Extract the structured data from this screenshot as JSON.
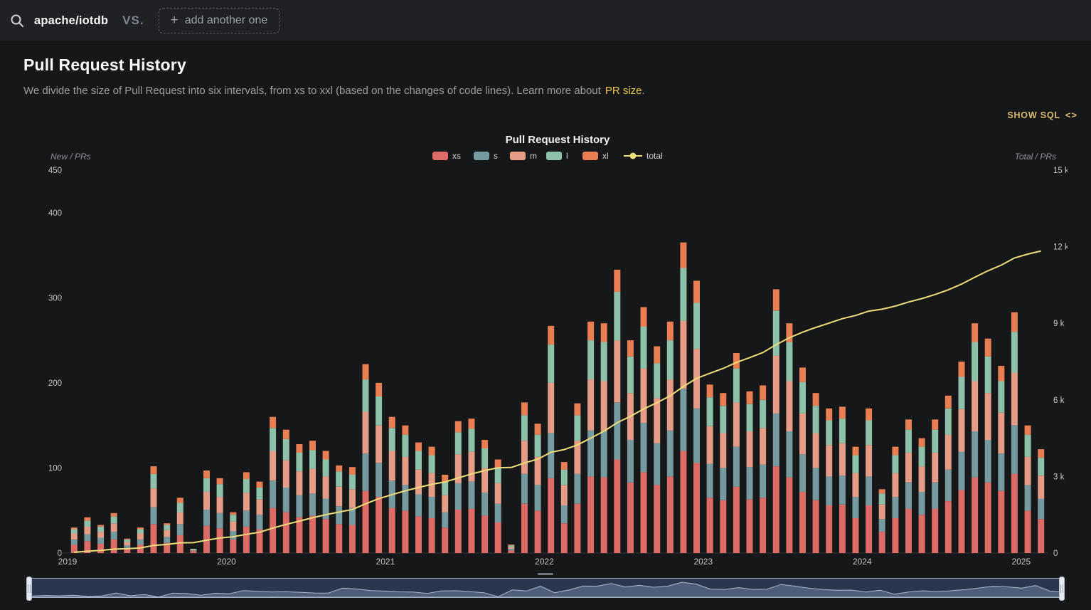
{
  "topbar": {
    "repo": "apache/iotdb",
    "vs_label": "VS.",
    "add_plus": "+",
    "add_button": "add another one"
  },
  "page": {
    "title": "Pull Request History",
    "subtitle_prefix": "We divide the size of Pull Request into six intervals, from xs to xxl (based on the changes of code lines). Learn more about",
    "subtitle_link": "PR size",
    "subtitle_suffix": ".",
    "show_sql": "SHOW SQL",
    "show_sql_icon": "<>"
  },
  "colors": {
    "accent_yellow": "#edc74f",
    "sql_yellow": "#d9bd72",
    "topbar_bg": "#1f2124",
    "page_bg": "#161719",
    "slider_bg": "#28374e",
    "slider_border": "#9aa7bb"
  },
  "chart_data": {
    "type": "bar",
    "stacked": true,
    "title": "Pull Request History",
    "legend_position": "top",
    "grid": false,
    "left_axis": {
      "name": "New / PRs",
      "max": 450,
      "ticks": [
        0,
        100,
        200,
        300,
        400,
        450
      ]
    },
    "right_axis": {
      "name": "Total / PRs",
      "max": 15000,
      "ticks": [
        0,
        3000,
        6000,
        9000,
        12000,
        15000
      ],
      "tick_labels": [
        "0",
        "3 k",
        "6 k",
        "9 k",
        "12 k",
        "15 k"
      ]
    },
    "x_year_labels": [
      "2019",
      "2020",
      "2021",
      "2022",
      "2023",
      "2024",
      "2025"
    ],
    "months": [
      "2019-01",
      "2019-02",
      "2019-03",
      "2019-04",
      "2019-05",
      "2019-06",
      "2019-07",
      "2019-08",
      "2019-09",
      "2019-10",
      "2019-11",
      "2019-12",
      "2020-01",
      "2020-02",
      "2020-03",
      "2020-04",
      "2020-05",
      "2020-06",
      "2020-07",
      "2020-08",
      "2020-09",
      "2020-10",
      "2020-11",
      "2020-12",
      "2021-01",
      "2021-02",
      "2021-03",
      "2021-04",
      "2021-05",
      "2021-06",
      "2021-07",
      "2021-08",
      "2021-09",
      "2021-10",
      "2021-11",
      "2021-12",
      "2022-01",
      "2022-02",
      "2022-03",
      "2022-04",
      "2022-05",
      "2022-06",
      "2022-07",
      "2022-08",
      "2022-09",
      "2022-10",
      "2022-11",
      "2022-12",
      "2023-01",
      "2023-02",
      "2023-03",
      "2023-04",
      "2023-05",
      "2023-06",
      "2023-07",
      "2023-08",
      "2023-09",
      "2023-10",
      "2023-11",
      "2023-12",
      "2024-01",
      "2024-02",
      "2024-03",
      "2024-04",
      "2024-05",
      "2024-06",
      "2024-07",
      "2024-08",
      "2024-09",
      "2024-10",
      "2024-11",
      "2024-12",
      "2025-01",
      "2025-02"
    ],
    "series": [
      {
        "name": "xs",
        "color": "#dd6b66",
        "values": [
          10,
          14,
          11,
          16,
          6,
          10,
          34,
          12,
          21,
          2,
          32,
          29,
          16,
          31,
          28,
          53,
          48,
          42,
          44,
          40,
          34,
          33,
          73,
          66,
          53,
          50,
          43,
          41,
          30,
          51,
          52,
          44,
          36,
          3,
          58,
          50,
          88,
          35,
          58,
          90,
          89,
          110,
          83,
          95,
          80,
          90,
          120,
          106,
          65,
          62,
          78,
          63,
          65,
          102,
          89,
          72,
          62,
          56,
          57,
          41,
          56,
          25,
          41,
          52,
          45,
          52,
          61,
          74,
          89,
          83,
          73,
          93,
          50,
          40
        ]
      },
      {
        "name": "s",
        "color": "#759aa0",
        "values": [
          6,
          8,
          7,
          9,
          3,
          6,
          20,
          7,
          13,
          1,
          19,
          18,
          10,
          19,
          17,
          32,
          29,
          26,
          26,
          24,
          21,
          20,
          44,
          40,
          32,
          30,
          26,
          25,
          18,
          31,
          32,
          27,
          22,
          2,
          35,
          30,
          53,
          21,
          35,
          54,
          54,
          67,
          50,
          58,
          49,
          54,
          73,
          64,
          40,
          38,
          47,
          38,
          39,
          62,
          54,
          44,
          38,
          34,
          34,
          25,
          34,
          15,
          25,
          31,
          27,
          31,
          37,
          45,
          54,
          50,
          44,
          57,
          30,
          24
        ]
      },
      {
        "name": "m",
        "color": "#e69d87",
        "values": [
          7,
          9,
          7,
          10,
          4,
          7,
          22,
          8,
          14,
          1,
          21,
          19,
          11,
          21,
          18,
          35,
          32,
          28,
          29,
          26,
          23,
          22,
          49,
          44,
          35,
          33,
          29,
          28,
          20,
          34,
          35,
          29,
          24,
          2,
          39,
          33,
          59,
          24,
          39,
          60,
          59,
          73,
          55,
          64,
          53,
          60,
          80,
          70,
          44,
          41,
          52,
          42,
          43,
          68,
          59,
          48,
          41,
          37,
          38,
          28,
          37,
          17,
          28,
          35,
          30,
          35,
          41,
          50,
          59,
          55,
          48,
          62,
          33,
          27
        ]
      },
      {
        "name": "l",
        "color": "#8dc1a9",
        "values": [
          5,
          7,
          6,
          8,
          3,
          5,
          17,
          6,
          11,
          1,
          16,
          15,
          8,
          16,
          14,
          27,
          25,
          22,
          22,
          20,
          18,
          17,
          38,
          34,
          27,
          26,
          22,
          21,
          16,
          26,
          27,
          23,
          19,
          2,
          30,
          26,
          45,
          18,
          30,
          46,
          46,
          57,
          43,
          49,
          41,
          46,
          62,
          54,
          34,
          32,
          40,
          32,
          33,
          53,
          46,
          37,
          32,
          29,
          29,
          21,
          29,
          13,
          21,
          27,
          23,
          27,
          31,
          38,
          46,
          43,
          37,
          48,
          26,
          21
        ]
      },
      {
        "name": "xl",
        "color": "#ea7e53",
        "values": [
          2,
          4,
          2,
          4,
          1,
          2,
          9,
          2,
          6,
          0,
          9,
          7,
          3,
          8,
          7,
          13,
          11,
          10,
          11,
          10,
          7,
          9,
          18,
          16,
          13,
          11,
          10,
          10,
          8,
          13,
          12,
          10,
          9,
          1,
          15,
          13,
          22,
          9,
          14,
          22,
          22,
          26,
          19,
          23,
          20,
          22,
          30,
          26,
          15,
          15,
          18,
          15,
          17,
          25,
          22,
          17,
          15,
          14,
          14,
          10,
          14,
          5,
          10,
          12,
          10,
          12,
          15,
          18,
          22,
          21,
          18,
          23,
          11,
          10
        ]
      }
    ],
    "line_series": {
      "name": "total",
      "color": "#eedd78",
      "mode": "cumulative_of_stack",
      "axis": "right"
    }
  }
}
